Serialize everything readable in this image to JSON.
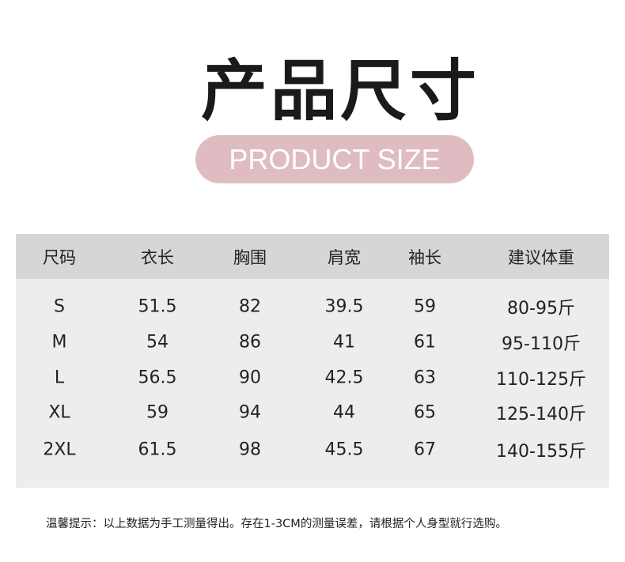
{
  "title": "产品尺寸",
  "subtitle": "PRODUCT SIZE",
  "colors": {
    "pill": "#dfbcc2",
    "header_bg": "#d6d6d6",
    "body_bg": "#ededed"
  },
  "table": {
    "headers": [
      "尺码",
      "衣长",
      "胸围",
      "肩宽",
      "袖长",
      "建议体重"
    ],
    "rows": [
      [
        "S",
        "51.5",
        "82",
        "39.5",
        "59",
        "80-95斤"
      ],
      [
        "M",
        "54",
        "86",
        "41",
        "61",
        "95-110斤"
      ],
      [
        "L",
        "56.5",
        "90",
        "42.5",
        "63",
        "110-125斤"
      ],
      [
        "XL",
        "59",
        "94",
        "44",
        "65",
        "125-140斤"
      ],
      [
        "2XL",
        "61.5",
        "98",
        "45.5",
        "67",
        "140-155斤"
      ]
    ]
  },
  "note": "温馨提示：以上数据为手工测量得出。存在1-3CM的测量误差，请根据个人身型就行选购。"
}
